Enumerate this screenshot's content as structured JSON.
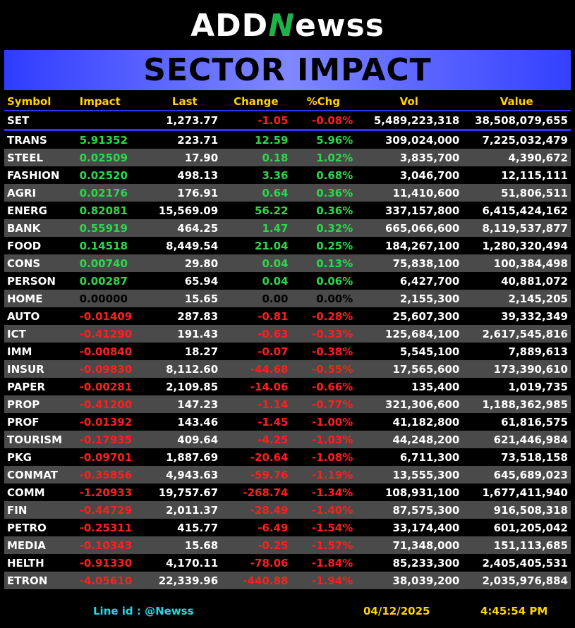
{
  "logo": {
    "part1": "ADD",
    "part2": "N",
    "part3": "ewss"
  },
  "banner_title": "SECTOR IMPACT",
  "headers": {
    "symbol": "Symbol",
    "impact": "Impact",
    "last": "Last",
    "change": "Change",
    "pchg": "%Chg",
    "vol": "Vol",
    "value": "Value"
  },
  "set_row": {
    "symbol": "SET",
    "impact": "",
    "last": "1,273.77",
    "change": "-1.05",
    "pchg": "-0.08%",
    "vol": "5,489,223,318",
    "value": "38,508,079,655"
  },
  "rows": [
    {
      "symbol": "TRANS",
      "impact": "5.91352",
      "last": "223.71",
      "change": "12.59",
      "pchg": "5.96%",
      "vol": "309,024,000",
      "value": "7,225,032,479",
      "trend": "up"
    },
    {
      "symbol": "STEEL",
      "impact": "0.02509",
      "last": "17.90",
      "change": "0.18",
      "pchg": "1.02%",
      "vol": "3,835,700",
      "value": "4,390,672",
      "trend": "up"
    },
    {
      "symbol": "FASHION",
      "impact": "0.02520",
      "last": "498.13",
      "change": "3.36",
      "pchg": "0.68%",
      "vol": "3,046,700",
      "value": "12,115,111",
      "trend": "up"
    },
    {
      "symbol": "AGRI",
      "impact": "0.02176",
      "last": "176.91",
      "change": "0.64",
      "pchg": "0.36%",
      "vol": "11,410,600",
      "value": "51,806,511",
      "trend": "up"
    },
    {
      "symbol": "ENERG",
      "impact": "0.82081",
      "last": "15,569.09",
      "change": "56.22",
      "pchg": "0.36%",
      "vol": "337,157,800",
      "value": "6,415,424,162",
      "trend": "up"
    },
    {
      "symbol": "BANK",
      "impact": "0.55919",
      "last": "464.25",
      "change": "1.47",
      "pchg": "0.32%",
      "vol": "665,066,600",
      "value": "8,119,537,877",
      "trend": "up"
    },
    {
      "symbol": "FOOD",
      "impact": "0.14518",
      "last": "8,449.54",
      "change": "21.04",
      "pchg": "0.25%",
      "vol": "184,267,100",
      "value": "1,280,320,494",
      "trend": "up"
    },
    {
      "symbol": "CONS",
      "impact": "0.00740",
      "last": "29.80",
      "change": "0.04",
      "pchg": "0.13%",
      "vol": "75,838,100",
      "value": "100,384,498",
      "trend": "up"
    },
    {
      "symbol": "PERSON",
      "impact": "0.00287",
      "last": "65.94",
      "change": "0.04",
      "pchg": "0.06%",
      "vol": "6,427,700",
      "value": "40,881,072",
      "trend": "up"
    },
    {
      "symbol": "HOME",
      "impact": "0.00000",
      "last": "15.65",
      "change": "0.00",
      "pchg": "0.00%",
      "vol": "2,155,300",
      "value": "2,145,205",
      "trend": "flat"
    },
    {
      "symbol": "AUTO",
      "impact": "-0.01409",
      "last": "287.83",
      "change": "-0.81",
      "pchg": "-0.28%",
      "vol": "25,607,300",
      "value": "39,332,349",
      "trend": "down"
    },
    {
      "symbol": "ICT",
      "impact": "-0.41290",
      "last": "191.43",
      "change": "-0.63",
      "pchg": "-0.33%",
      "vol": "125,684,100",
      "value": "2,617,545,816",
      "trend": "down"
    },
    {
      "symbol": "IMM",
      "impact": "-0.00840",
      "last": "18.27",
      "change": "-0.07",
      "pchg": "-0.38%",
      "vol": "5,545,100",
      "value": "7,889,613",
      "trend": "down"
    },
    {
      "symbol": "INSUR",
      "impact": "-0.09830",
      "last": "8,112.60",
      "change": "-44.68",
      "pchg": "-0.55%",
      "vol": "17,565,600",
      "value": "173,390,610",
      "trend": "down"
    },
    {
      "symbol": "PAPER",
      "impact": "-0.00281",
      "last": "2,109.85",
      "change": "-14.06",
      "pchg": "-0.66%",
      "vol": "135,400",
      "value": "1,019,735",
      "trend": "down"
    },
    {
      "symbol": "PROP",
      "impact": "-0.41200",
      "last": "147.23",
      "change": "-1.14",
      "pchg": "-0.77%",
      "vol": "321,306,600",
      "value": "1,188,362,985",
      "trend": "down"
    },
    {
      "symbol": "PROF",
      "impact": "-0.01392",
      "last": "143.46",
      "change": "-1.45",
      "pchg": "-1.00%",
      "vol": "41,182,800",
      "value": "61,816,575",
      "trend": "down"
    },
    {
      "symbol": "TOURISM",
      "impact": "-0.17935",
      "last": "409.64",
      "change": "-4.25",
      "pchg": "-1.03%",
      "vol": "44,248,200",
      "value": "621,446,984",
      "trend": "down"
    },
    {
      "symbol": "PKG",
      "impact": "-0.09701",
      "last": "1,887.69",
      "change": "-20.64",
      "pchg": "-1.08%",
      "vol": "6,711,300",
      "value": "73,518,158",
      "trend": "down"
    },
    {
      "symbol": "CONMAT",
      "impact": "-0.35856",
      "last": "4,943.63",
      "change": "-59.76",
      "pchg": "-1.19%",
      "vol": "13,555,300",
      "value": "645,689,023",
      "trend": "down"
    },
    {
      "symbol": "COMM",
      "impact": "-1.20933",
      "last": "19,757.67",
      "change": "-268.74",
      "pchg": "-1.34%",
      "vol": "108,931,100",
      "value": "1,677,411,940",
      "trend": "down"
    },
    {
      "symbol": "FIN",
      "impact": "-0.44729",
      "last": "2,011.37",
      "change": "-28.49",
      "pchg": "-1.40%",
      "vol": "87,575,300",
      "value": "916,508,318",
      "trend": "down"
    },
    {
      "symbol": "PETRO",
      "impact": "-0.25311",
      "last": "415.77",
      "change": "-6.49",
      "pchg": "-1.54%",
      "vol": "33,174,400",
      "value": "601,205,042",
      "trend": "down"
    },
    {
      "symbol": "MEDIA",
      "impact": "-0.10343",
      "last": "15.68",
      "change": "-0.25",
      "pchg": "-1.57%",
      "vol": "71,348,000",
      "value": "151,113,685",
      "trend": "down"
    },
    {
      "symbol": "HELTH",
      "impact": "-0.91330",
      "last": "4,170.11",
      "change": "-78.06",
      "pchg": "-1.84%",
      "vol": "85,233,300",
      "value": "2,405,405,531",
      "trend": "down"
    },
    {
      "symbol": "ETRON",
      "impact": "-4.05610",
      "last": "22,339.96",
      "change": "-440.88",
      "pchg": "-1.94%",
      "vol": "38,039,200",
      "value": "2,035,976,884",
      "trend": "down"
    }
  ],
  "footer": {
    "line_id": "Line id  : @Newss",
    "date": "04/12/2025",
    "time": "4:45:54 PM"
  },
  "colors": {
    "up": "#2ad94a",
    "down": "#ff1e1e",
    "header": "#ffd400",
    "line": "#27d6e6"
  }
}
